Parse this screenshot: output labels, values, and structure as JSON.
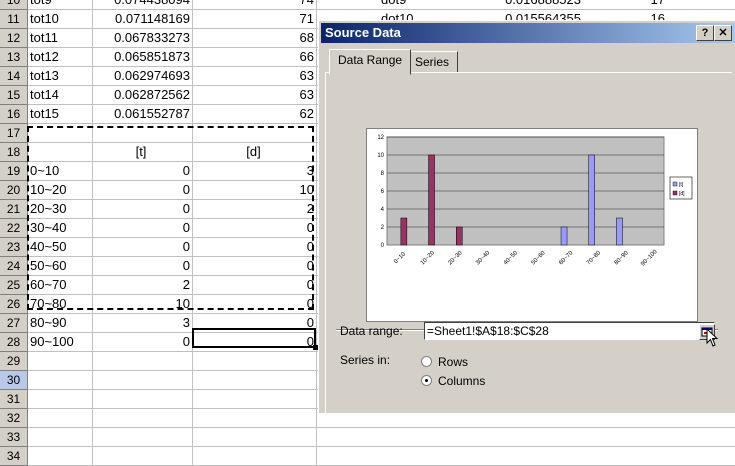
{
  "sheet": {
    "rows": [
      {
        "num": "10",
        "a": "tot9",
        "b": "0.074438094",
        "c": "74",
        "d1": "dot9",
        "d2": "0.016888523",
        "d3": "17"
      },
      {
        "num": "11",
        "a": "tot10",
        "b": "0.071148169",
        "c": "71",
        "d1": "dot10",
        "d2": "0.015564355",
        "d3": "16"
      },
      {
        "num": "12",
        "a": "tot11",
        "b": "0.067833273",
        "c": "68"
      },
      {
        "num": "13",
        "a": "tot12",
        "b": "0.065851873",
        "c": "66"
      },
      {
        "num": "14",
        "a": "tot13",
        "b": "0.062974693",
        "c": "63"
      },
      {
        "num": "15",
        "a": "tot14",
        "b": "0.062872562",
        "c": "63"
      },
      {
        "num": "16",
        "a": "tot15",
        "b": "0.061552787",
        "c": "62"
      },
      {
        "num": "17",
        "a": "",
        "b": "",
        "c": ""
      },
      {
        "num": "18",
        "a": "",
        "b": "[t]",
        "c": "[d]",
        "center": true
      },
      {
        "num": "19",
        "a": "0~10",
        "b": "0",
        "c": "3"
      },
      {
        "num": "20",
        "a": "10~20",
        "b": "0",
        "c": "10"
      },
      {
        "num": "21",
        "a": "20~30",
        "b": "0",
        "c": "2"
      },
      {
        "num": "22",
        "a": "30~40",
        "b": "0",
        "c": "0"
      },
      {
        "num": "23",
        "a": "40~50",
        "b": "0",
        "c": "0"
      },
      {
        "num": "24",
        "a": "50~60",
        "b": "0",
        "c": "0"
      },
      {
        "num": "25",
        "a": "60~70",
        "b": "2",
        "c": "0"
      },
      {
        "num": "26",
        "a": "70~80",
        "b": "10",
        "c": "0"
      },
      {
        "num": "27",
        "a": "80~90",
        "b": "3",
        "c": "0"
      },
      {
        "num": "28",
        "a": "90~100",
        "b": "0",
        "c": "0"
      },
      {
        "num": "29",
        "a": "",
        "b": "",
        "c": ""
      },
      {
        "num": "30",
        "a": "",
        "b": "",
        "c": "",
        "selected": true
      },
      {
        "num": "31",
        "a": "",
        "b": "",
        "c": ""
      },
      {
        "num": "32",
        "a": "",
        "b": "",
        "c": ""
      },
      {
        "num": "33",
        "a": "",
        "b": "",
        "c": ""
      },
      {
        "num": "34",
        "a": "",
        "b": "",
        "c": ""
      }
    ]
  },
  "dialog": {
    "title": "Source Data",
    "help_btn": "?",
    "close_btn": "✕",
    "tabs": [
      "Data Range",
      "Series"
    ],
    "data_range_label": "Data range:",
    "data_range_value": "=Sheet1!$A$18:$C$28",
    "series_in_label": "Series in:",
    "rows_label": "Rows",
    "columns_label": "Columns",
    "selected_series_in": "Columns",
    "icons": {
      "help": "question-icon",
      "close": "close-icon",
      "collapse": "range-collapse-icon"
    }
  },
  "chart_data": {
    "type": "bar",
    "categories": [
      "0~10",
      "10~20",
      "20~30",
      "30~40",
      "40~50",
      "50~60",
      "60~70",
      "70~80",
      "80~90",
      "90~100"
    ],
    "series": [
      {
        "name": "[t]",
        "values": [
          0,
          0,
          0,
          0,
          0,
          0,
          2,
          10,
          3,
          0
        ],
        "color": "#9999ff"
      },
      {
        "name": "[d]",
        "values": [
          3,
          10,
          2,
          0,
          0,
          0,
          0,
          0,
          0,
          0
        ],
        "color": "#993366"
      }
    ],
    "yticks": [
      "0",
      "2",
      "4",
      "6",
      "8",
      "10",
      "12"
    ],
    "ylim": [
      0,
      12
    ],
    "plot_bg": "#c0c0c0",
    "grid": true,
    "legend": "right"
  }
}
